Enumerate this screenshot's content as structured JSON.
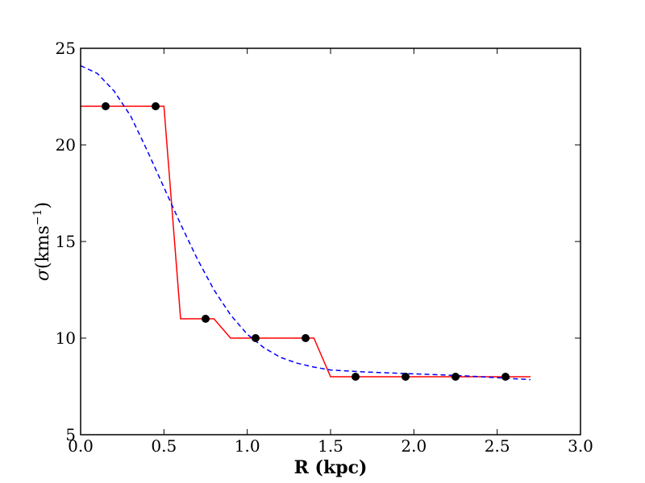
{
  "chart_data": {
    "type": "line",
    "title": "",
    "xlabel": "R (kpc)",
    "ylabel": {
      "symbol": "σ",
      "open": "(",
      "unit": "kms",
      "exponent": "−1",
      "close": ")"
    },
    "xlim": [
      0.0,
      3.0
    ],
    "ylim": [
      5,
      25
    ],
    "x_ticks": [
      {
        "value": 0.0,
        "label": "0.0"
      },
      {
        "value": 0.5,
        "label": "0.5"
      },
      {
        "value": 1.0,
        "label": "1.0"
      },
      {
        "value": 1.5,
        "label": "1.5"
      },
      {
        "value": 2.0,
        "label": "2.0"
      },
      {
        "value": 2.5,
        "label": "2.5"
      },
      {
        "value": 3.0,
        "label": "3.0"
      }
    ],
    "y_ticks": [
      {
        "value": 5,
        "label": "5"
      },
      {
        "value": 10,
        "label": "10"
      },
      {
        "value": 15,
        "label": "15"
      },
      {
        "value": 20,
        "label": "20"
      },
      {
        "value": 25,
        "label": "25"
      }
    ],
    "grid": false,
    "series": [
      {
        "style": "markers",
        "color": "#000000",
        "x": [
          0.15,
          0.45,
          0.75,
          1.05,
          1.35,
          1.65,
          1.95,
          2.25,
          2.55
        ],
        "y": [
          22,
          22,
          11,
          10,
          10,
          8,
          8,
          8,
          8
        ]
      },
      {
        "style": "solid",
        "color": "#ff0000",
        "x": [
          0.0,
          0.5,
          0.6,
          0.8,
          0.9,
          1.4,
          1.5,
          2.7
        ],
        "y": [
          22,
          22,
          11,
          11,
          10,
          10,
          8,
          8
        ]
      },
      {
        "style": "dashed",
        "color": "#0000ff",
        "x": [
          0.0,
          0.1,
          0.2,
          0.3,
          0.4,
          0.5,
          0.6,
          0.7,
          0.8,
          0.9,
          1.0,
          1.1,
          1.2,
          1.3,
          1.4,
          1.5,
          1.7,
          2.0,
          2.3,
          2.5,
          2.7
        ],
        "y": [
          24.1,
          23.7,
          22.8,
          21.5,
          19.7,
          17.8,
          15.9,
          14.1,
          12.5,
          11.2,
          10.2,
          9.5,
          9.0,
          8.7,
          8.5,
          8.35,
          8.25,
          8.15,
          8.05,
          7.95,
          7.85
        ]
      }
    ]
  }
}
